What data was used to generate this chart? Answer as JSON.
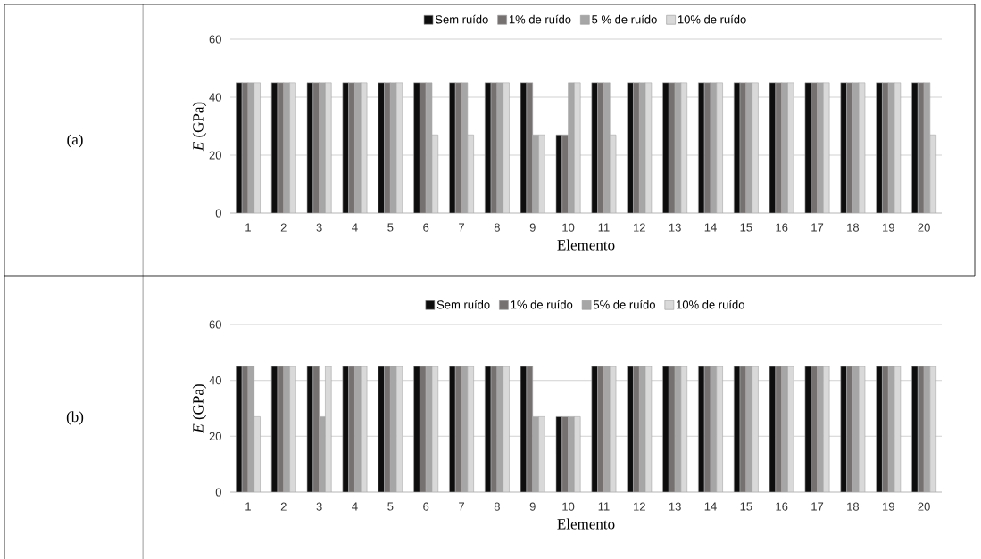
{
  "chart_data": [
    {
      "type": "bar",
      "annotations": [
        "(a)"
      ],
      "xlabel": "Elemento",
      "ylabel": "*E* (GPa)",
      "categories": [
        "1",
        "2",
        "3",
        "4",
        "5",
        "6",
        "7",
        "8",
        "9",
        "10",
        "11",
        "12",
        "13",
        "14",
        "15",
        "16",
        "17",
        "18",
        "19",
        "20"
      ],
      "series": [
        {
          "name": "Sem ruído",
          "color": "#0d0d0d",
          "values": [
            45,
            45,
            45,
            45,
            45,
            45,
            45,
            45,
            45,
            27,
            45,
            45,
            45,
            45,
            45,
            45,
            45,
            45,
            45,
            45
          ]
        },
        {
          "name": "1% de ruído",
          "color": "#767171",
          "values": [
            45,
            45,
            45,
            45,
            45,
            45,
            45,
            45,
            45,
            27,
            45,
            45,
            45,
            45,
            45,
            45,
            45,
            45,
            45,
            45
          ]
        },
        {
          "name": "5 % de ruído",
          "color": "#a6a6a6",
          "values": [
            45,
            45,
            45,
            45,
            45,
            45,
            45,
            45,
            27,
            45,
            45,
            45,
            45,
            45,
            45,
            45,
            45,
            45,
            45,
            45
          ]
        },
        {
          "name": "10% de ruído",
          "color": "#d9d9d9",
          "values": [
            45,
            45,
            45,
            45,
            45,
            27,
            27,
            45,
            27,
            45,
            27,
            45,
            45,
            45,
            45,
            45,
            45,
            45,
            45,
            27
          ]
        }
      ],
      "ylim": [
        0,
        60
      ],
      "yticks": [
        0,
        20,
        40,
        60
      ],
      "grid": "y",
      "legend": "top"
    },
    {
      "type": "bar",
      "annotations": [
        "(b)"
      ],
      "xlabel": "Elemento",
      "ylabel": "*E* (GPa)",
      "categories": [
        "1",
        "2",
        "3",
        "4",
        "5",
        "6",
        "7",
        "8",
        "9",
        "10",
        "11",
        "12",
        "13",
        "14",
        "15",
        "16",
        "17",
        "18",
        "19",
        "20"
      ],
      "series": [
        {
          "name": "Sem ruído",
          "color": "#0d0d0d",
          "values": [
            45,
            45,
            45,
            45,
            45,
            45,
            45,
            45,
            45,
            27,
            45,
            45,
            45,
            45,
            45,
            45,
            45,
            45,
            45,
            45
          ]
        },
        {
          "name": "1% de ruído",
          "color": "#767171",
          "values": [
            45,
            45,
            45,
            45,
            45,
            45,
            45,
            45,
            45,
            27,
            45,
            45,
            45,
            45,
            45,
            45,
            45,
            45,
            45,
            45
          ]
        },
        {
          "name": "5% de ruído",
          "color": "#a6a6a6",
          "values": [
            45,
            45,
            27,
            45,
            45,
            45,
            45,
            45,
            27,
            27,
            45,
            45,
            45,
            45,
            45,
            45,
            45,
            45,
            45,
            45
          ]
        },
        {
          "name": "10% de ruído",
          "color": "#d9d9d9",
          "values": [
            27,
            45,
            45,
            45,
            45,
            45,
            45,
            45,
            27,
            27,
            45,
            45,
            45,
            45,
            45,
            45,
            45,
            45,
            45,
            45
          ]
        }
      ],
      "ylim": [
        0,
        60
      ],
      "yticks": [
        0,
        20,
        40,
        60
      ],
      "grid": "y",
      "legend": "top"
    }
  ]
}
